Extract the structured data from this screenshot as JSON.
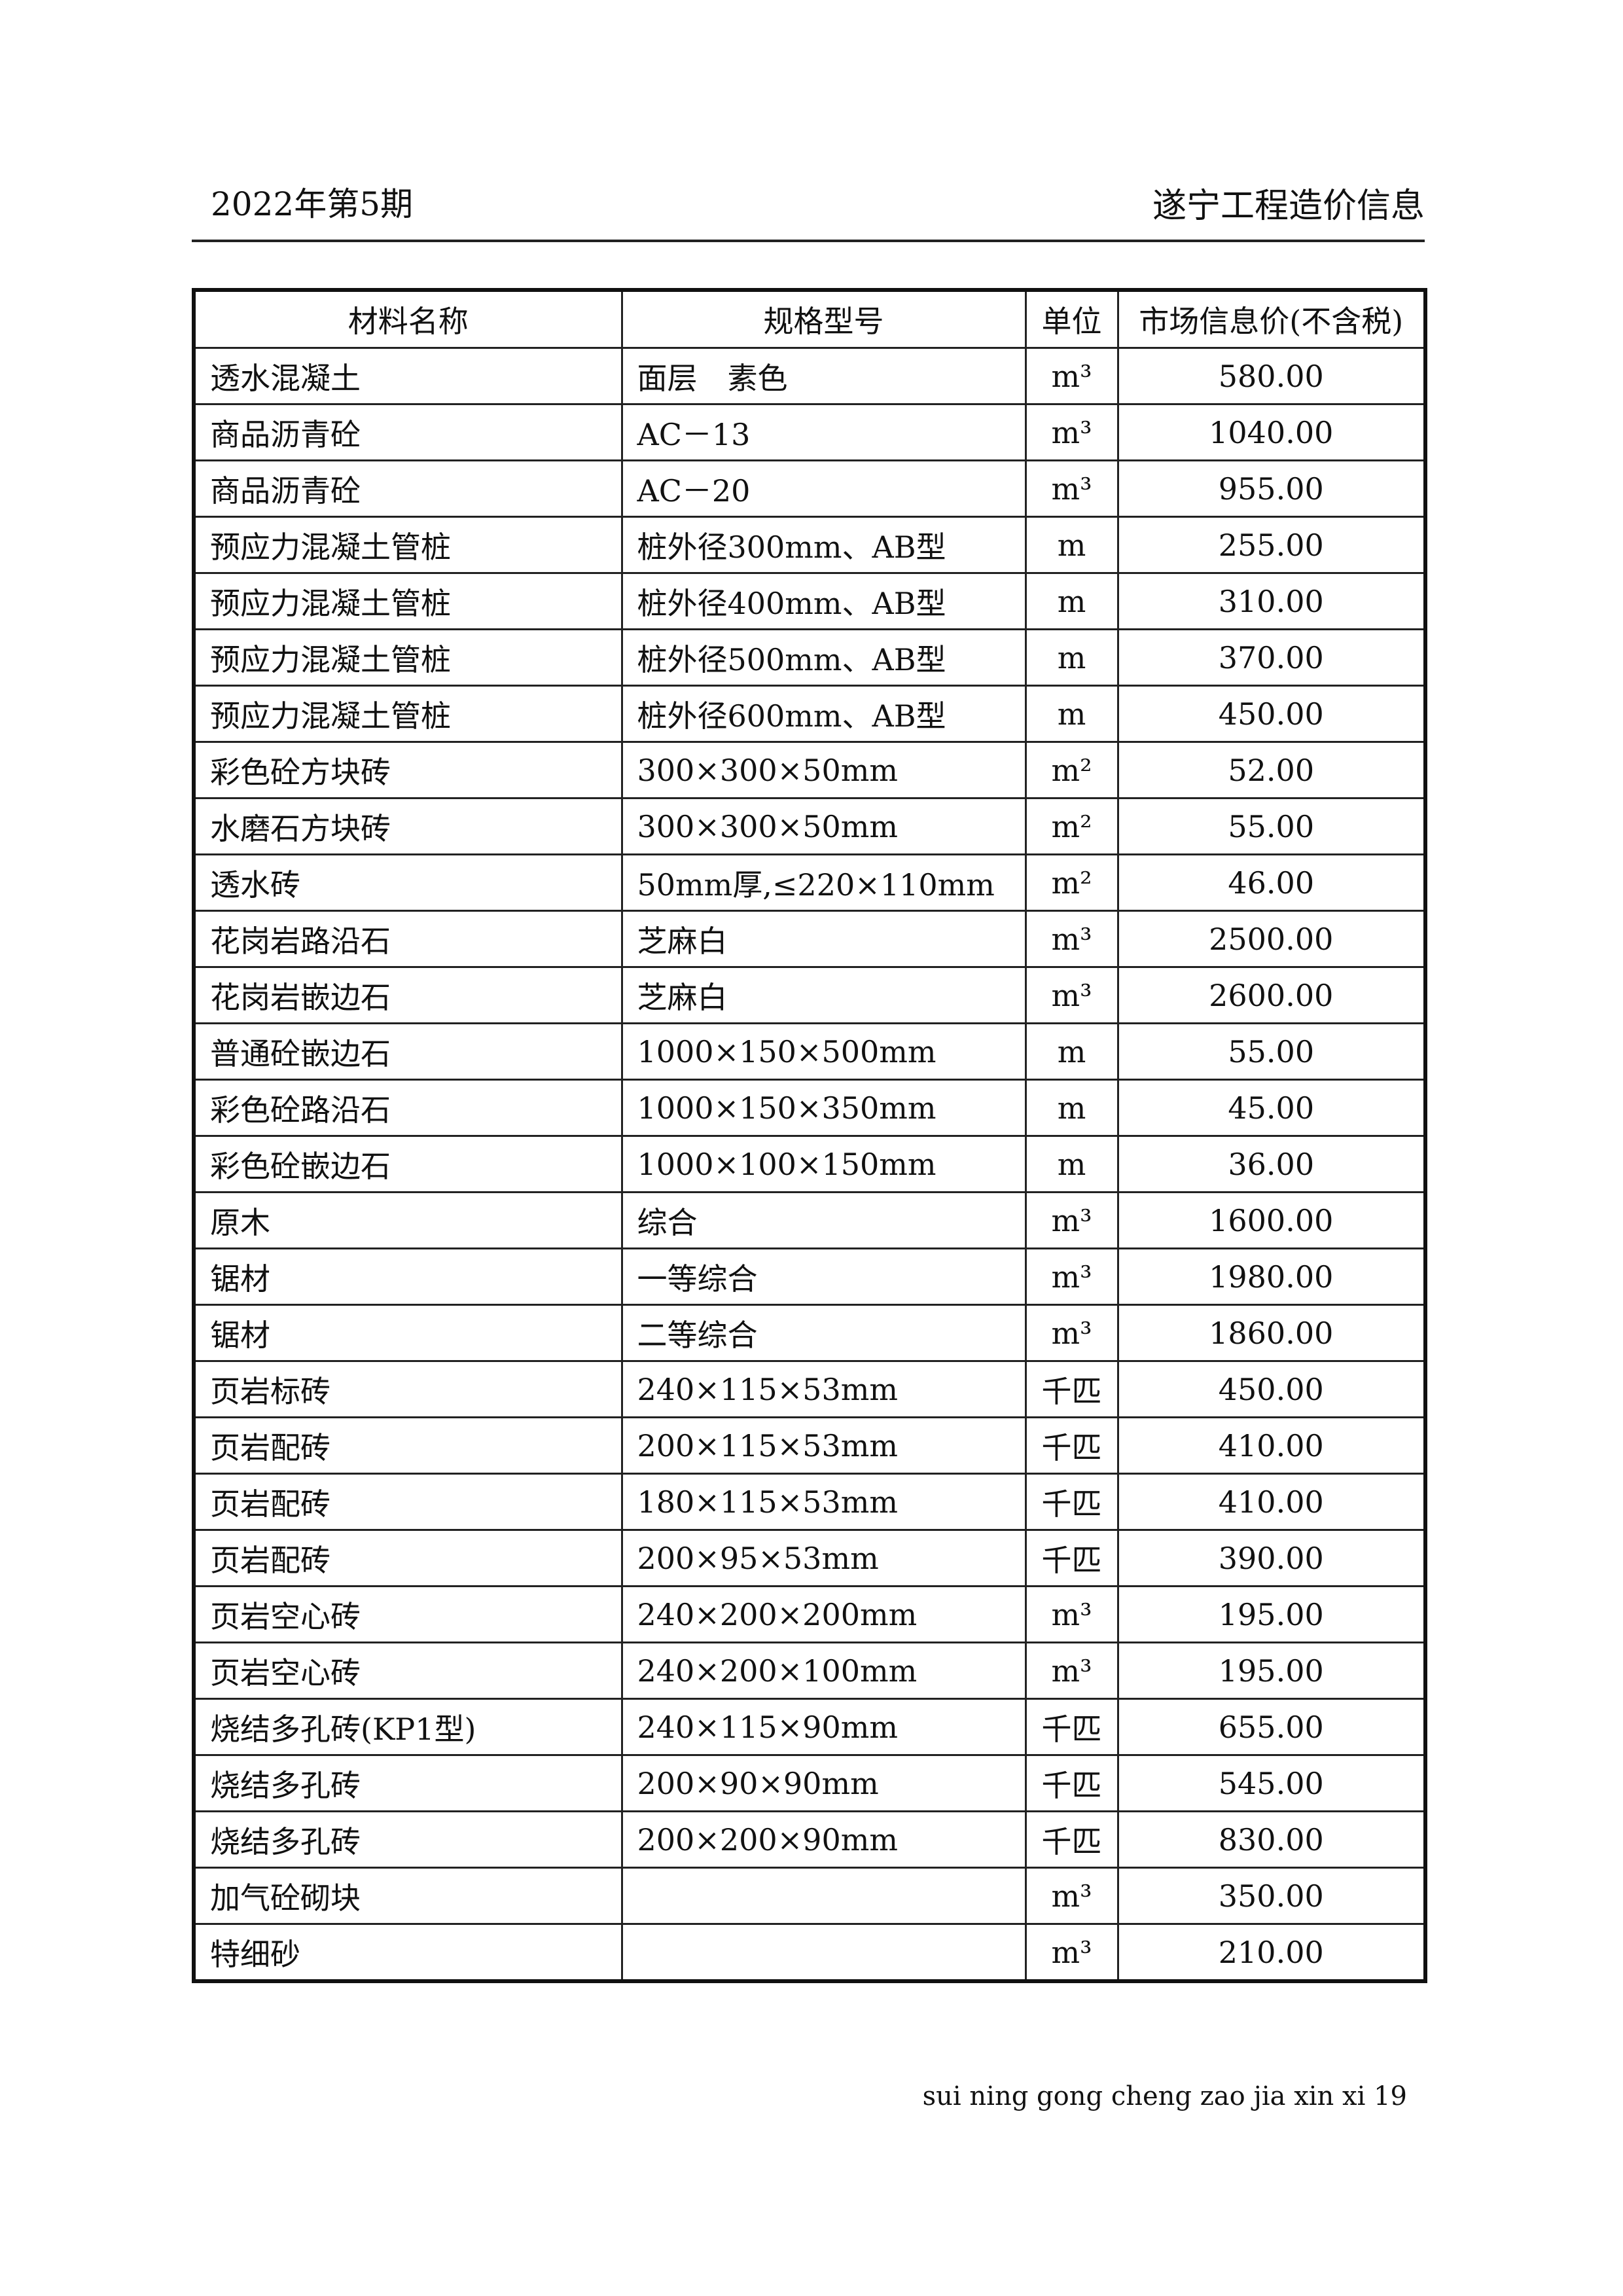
{
  "header": {
    "issue": "2022年第5期",
    "publication": "遂宁工程造价信息"
  },
  "table": {
    "columns": [
      "材料名称",
      "规格型号",
      "单位",
      "市场信息价(不含税)"
    ],
    "rows": [
      [
        "透水混凝土",
        "面层　素色",
        "m³",
        "580.00"
      ],
      [
        "商品沥青砼",
        "AC－13",
        "m³",
        "1040.00"
      ],
      [
        "商品沥青砼",
        "AC－20",
        "m³",
        "955.00"
      ],
      [
        "预应力混凝土管桩",
        "桩外径300mm、AB型",
        "m",
        "255.00"
      ],
      [
        "预应力混凝土管桩",
        "桩外径400mm、AB型",
        "m",
        "310.00"
      ],
      [
        "预应力混凝土管桩",
        "桩外径500mm、AB型",
        "m",
        "370.00"
      ],
      [
        "预应力混凝土管桩",
        "桩外径600mm、AB型",
        "m",
        "450.00"
      ],
      [
        "彩色砼方块砖",
        "300×300×50mm",
        "m²",
        "52.00"
      ],
      [
        "水磨石方块砖",
        "300×300×50mm",
        "m²",
        "55.00"
      ],
      [
        "透水砖",
        "50mm厚,≤220×110mm",
        "m²",
        "46.00"
      ],
      [
        "花岗岩路沿石",
        "芝麻白",
        "m³",
        "2500.00"
      ],
      [
        "花岗岩嵌边石",
        "芝麻白",
        "m³",
        "2600.00"
      ],
      [
        "普通砼嵌边石",
        "1000×150×500mm",
        "m",
        "55.00"
      ],
      [
        "彩色砼路沿石",
        "1000×150×350mm",
        "m",
        "45.00"
      ],
      [
        "彩色砼嵌边石",
        "1000×100×150mm",
        "m",
        "36.00"
      ],
      [
        "原木",
        "综合",
        "m³",
        "1600.00"
      ],
      [
        "锯材",
        "一等综合",
        "m³",
        "1980.00"
      ],
      [
        "锯材",
        "二等综合",
        "m³",
        "1860.00"
      ],
      [
        "页岩标砖",
        "240×115×53mm",
        "千匹",
        "450.00"
      ],
      [
        "页岩配砖",
        "200×115×53mm",
        "千匹",
        "410.00"
      ],
      [
        "页岩配砖",
        "180×115×53mm",
        "千匹",
        "410.00"
      ],
      [
        "页岩配砖",
        "200×95×53mm",
        "千匹",
        "390.00"
      ],
      [
        "页岩空心砖",
        "240×200×200mm",
        "m³",
        "195.00"
      ],
      [
        "页岩空心砖",
        "240×200×100mm",
        "m³",
        "195.00"
      ],
      [
        "烧结多孔砖(KP1型)",
        "240×115×90mm",
        "千匹",
        "655.00"
      ],
      [
        "烧结多孔砖",
        "200×90×90mm",
        "千匹",
        "545.00"
      ],
      [
        "烧结多孔砖",
        "200×200×90mm",
        "千匹",
        "830.00"
      ],
      [
        "加气砼砌块",
        "",
        "m³",
        "350.00"
      ],
      [
        "特细砂",
        "",
        "m³",
        "210.00"
      ]
    ]
  },
  "footer": {
    "text": "sui ning gong cheng zao jia xin xi 19"
  }
}
